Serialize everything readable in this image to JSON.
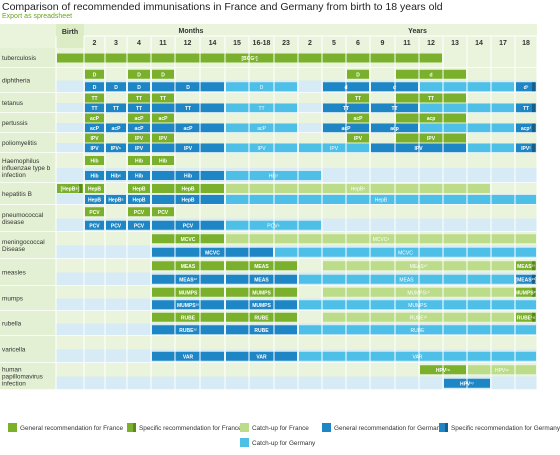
{
  "title": "Comparison of recommended immunisations in France and Germany from birth to 18 years old",
  "export_link": "Export as spreadsheet",
  "chart_data": {
    "type": "table",
    "header": {
      "birth": "Birth",
      "months": "Months",
      "years": "Years"
    },
    "columns": [
      "Birth",
      "2",
      "3",
      "4",
      "11",
      "12",
      "14",
      "15",
      "16-18",
      "23",
      "2",
      "5",
      "6",
      "9",
      "11",
      "12",
      "13",
      "14",
      "17",
      "18"
    ],
    "colors": {
      "general_fr": "#7ab02c",
      "specific_fr": "#7ab02c",
      "catchup_fr": "#bcdc8a",
      "general_de": "#1f86c5",
      "specific_de": "#1f86c5",
      "catchup_de": "#4ec0e8",
      "stripe_a": "#eaf4dc",
      "stripe_b": "#d6ebf6",
      "grid": "#ffffff"
    },
    "vaccines": [
      {
        "name": "tuberculosis",
        "single": true,
        "fr": [
          {
            "from": 0,
            "to": 15,
            "type": "general",
            "label": "[BCG¹]"
          }
        ],
        "de": []
      },
      {
        "name": "diphtheria",
        "fr": [
          {
            "from": 1,
            "to": 1,
            "type": "general",
            "label": "D"
          },
          {
            "from": 3,
            "to": 3,
            "type": "general",
            "label": "D"
          },
          {
            "from": 4,
            "to": 4,
            "type": "general",
            "label": "D"
          },
          {
            "from": 12,
            "to": 12,
            "type": "general",
            "label": "D"
          },
          {
            "from": 14,
            "to": 16,
            "type": "general",
            "label": "d"
          }
        ],
        "de": [
          {
            "from": 1,
            "to": 1,
            "type": "general",
            "label": "D"
          },
          {
            "from": 2,
            "to": 2,
            "type": "general",
            "label": "D"
          },
          {
            "from": 3,
            "to": 3,
            "type": "general",
            "label": "D"
          },
          {
            "from": 4,
            "to": 6,
            "type": "general",
            "label": "D"
          },
          {
            "from": 7,
            "to": 9,
            "type": "catchup",
            "label": "D"
          },
          {
            "from": 11,
            "to": 12,
            "type": "general",
            "label": "d"
          },
          {
            "from": 13,
            "to": 14,
            "type": "general",
            "label": "d"
          },
          {
            "from": 15,
            "to": 18,
            "type": "catchup",
            "label": ""
          },
          {
            "from": 19,
            "to": 19,
            "type": "specific",
            "label": "d³"
          }
        ]
      },
      {
        "name": "tetanus",
        "fr": [
          {
            "from": 1,
            "to": 1,
            "type": "general",
            "label": "TT"
          },
          {
            "from": 3,
            "to": 3,
            "type": "general",
            "label": "TT"
          },
          {
            "from": 4,
            "to": 4,
            "type": "general",
            "label": "TT"
          },
          {
            "from": 12,
            "to": 12,
            "type": "general",
            "label": "TT"
          },
          {
            "from": 14,
            "to": 16,
            "type": "general",
            "label": "TT"
          }
        ],
        "de": [
          {
            "from": 1,
            "to": 1,
            "type": "general",
            "label": "TT"
          },
          {
            "from": 2,
            "to": 2,
            "type": "general",
            "label": "TT"
          },
          {
            "from": 3,
            "to": 3,
            "type": "general",
            "label": "TT"
          },
          {
            "from": 4,
            "to": 6,
            "type": "general",
            "label": "TT"
          },
          {
            "from": 7,
            "to": 9,
            "type": "catchup",
            "label": "TT"
          },
          {
            "from": 11,
            "to": 12,
            "type": "general",
            "label": "TT"
          },
          {
            "from": 13,
            "to": 14,
            "type": "general",
            "label": "TT"
          },
          {
            "from": 15,
            "to": 18,
            "type": "catchup",
            "label": ""
          },
          {
            "from": 19,
            "to": 19,
            "type": "specific",
            "label": "TT"
          }
        ]
      },
      {
        "name": "pertussis",
        "fr": [
          {
            "from": 1,
            "to": 1,
            "type": "general",
            "label": "acP"
          },
          {
            "from": 3,
            "to": 3,
            "type": "general",
            "label": "acP"
          },
          {
            "from": 4,
            "to": 4,
            "type": "general",
            "label": "acP"
          },
          {
            "from": 12,
            "to": 12,
            "type": "general",
            "label": "acP"
          },
          {
            "from": 14,
            "to": 16,
            "type": "general",
            "label": "acp"
          }
        ],
        "de": [
          {
            "from": 1,
            "to": 1,
            "type": "general",
            "label": "acP"
          },
          {
            "from": 2,
            "to": 2,
            "type": "general",
            "label": "acP"
          },
          {
            "from": 3,
            "to": 3,
            "type": "general",
            "label": "acP"
          },
          {
            "from": 4,
            "to": 6,
            "type": "general",
            "label": "acP"
          },
          {
            "from": 7,
            "to": 9,
            "type": "catchup",
            "label": "acP"
          },
          {
            "from": 11,
            "to": 12,
            "type": "general",
            "label": "acP"
          },
          {
            "from": 13,
            "to": 14,
            "type": "general",
            "label": "acp"
          },
          {
            "from": 15,
            "to": 18,
            "type": "catchup",
            "label": ""
          },
          {
            "from": 19,
            "to": 19,
            "type": "specific",
            "label": "acp²"
          }
        ]
      },
      {
        "name": "poliomyelitis",
        "fr": [
          {
            "from": 1,
            "to": 1,
            "type": "general",
            "label": "IPV"
          },
          {
            "from": 3,
            "to": 3,
            "type": "general",
            "label": "IPV"
          },
          {
            "from": 4,
            "to": 4,
            "type": "general",
            "label": "IPV"
          },
          {
            "from": 12,
            "to": 12,
            "type": "general",
            "label": "IPV"
          },
          {
            "from": 14,
            "to": 16,
            "type": "general",
            "label": "IPV"
          }
        ],
        "de": [
          {
            "from": 1,
            "to": 1,
            "type": "general",
            "label": "IPV"
          },
          {
            "from": 2,
            "to": 2,
            "type": "general",
            "label": "IPV⁵"
          },
          {
            "from": 3,
            "to": 3,
            "type": "general",
            "label": "IPV"
          },
          {
            "from": 4,
            "to": 6,
            "type": "general",
            "label": "IPV"
          },
          {
            "from": 7,
            "to": 9,
            "type": "catchup",
            "label": "IPV"
          },
          {
            "from": 10,
            "to": 12,
            "type": "catchup",
            "label": "IPV"
          },
          {
            "from": 13,
            "to": 16,
            "type": "general",
            "label": "IPV"
          },
          {
            "from": 17,
            "to": 18,
            "type": "catchup",
            "label": ""
          },
          {
            "from": 19,
            "to": 19,
            "type": "specific",
            "label": "IPV²"
          }
        ]
      },
      {
        "name": "Haemophilus influenzae type b infection",
        "fr": [
          {
            "from": 1,
            "to": 1,
            "type": "general",
            "label": "Hib"
          },
          {
            "from": 3,
            "to": 3,
            "type": "general",
            "label": "Hib"
          },
          {
            "from": 4,
            "to": 4,
            "type": "general",
            "label": "Hib"
          }
        ],
        "de": [
          {
            "from": 1,
            "to": 1,
            "type": "general",
            "label": "Hib"
          },
          {
            "from": 2,
            "to": 2,
            "type": "general",
            "label": "Hib⁶"
          },
          {
            "from": 3,
            "to": 3,
            "type": "general",
            "label": "Hib"
          },
          {
            "from": 4,
            "to": 6,
            "type": "general",
            "label": "Hib"
          },
          {
            "from": 7,
            "to": 10,
            "type": "catchup",
            "label": "Hib⁷"
          }
        ]
      },
      {
        "name": "hepatitis B",
        "fr": [
          {
            "from": 0,
            "to": 0,
            "type": "specific",
            "label": "[HepB⁸]"
          },
          {
            "from": 1,
            "to": 1,
            "type": "general",
            "label": "HepB"
          },
          {
            "from": 3,
            "to": 3,
            "type": "general",
            "label": "HepB"
          },
          {
            "from": 4,
            "to": 6,
            "type": "general",
            "label": "HepB"
          },
          {
            "from": 7,
            "to": 17,
            "type": "catchup",
            "label": "HepB⁹"
          }
        ],
        "de": [
          {
            "from": 1,
            "to": 1,
            "type": "general",
            "label": "HepB"
          },
          {
            "from": 2,
            "to": 2,
            "type": "general",
            "label": "HepB⁶"
          },
          {
            "from": 3,
            "to": 3,
            "type": "general",
            "label": "HepB"
          },
          {
            "from": 4,
            "to": 6,
            "type": "general",
            "label": "HepB"
          },
          {
            "from": 7,
            "to": 19,
            "type": "catchup",
            "label": "HepB"
          }
        ]
      },
      {
        "name": "pneumococcal disease",
        "fr": [
          {
            "from": 1,
            "to": 1,
            "type": "general",
            "label": "PCV"
          },
          {
            "from": 3,
            "to": 3,
            "type": "general",
            "label": "PCV"
          },
          {
            "from": 4,
            "to": 4,
            "type": "general",
            "label": "PCV"
          }
        ],
        "de": [
          {
            "from": 1,
            "to": 1,
            "type": "general",
            "label": "PCV"
          },
          {
            "from": 2,
            "to": 2,
            "type": "general",
            "label": "PCV"
          },
          {
            "from": 3,
            "to": 3,
            "type": "general",
            "label": "PCV"
          },
          {
            "from": 4,
            "to": 6,
            "type": "general",
            "label": "PCV"
          },
          {
            "from": 7,
            "to": 10,
            "type": "catchup",
            "label": "PCV⁹"
          }
        ]
      },
      {
        "name": "meningococcal Disease",
        "fr": [
          {
            "from": 4,
            "to": 6,
            "type": "general",
            "label": "MCVC"
          },
          {
            "from": 7,
            "to": 19,
            "type": "catchup",
            "label": "MCVC⁸"
          }
        ],
        "de": [
          {
            "from": 4,
            "to": 8,
            "type": "general",
            "label": "MCVC"
          },
          {
            "from": 9,
            "to": 19,
            "type": "catchup",
            "label": "MCVC"
          }
        ]
      },
      {
        "name": "measles",
        "fr": [
          {
            "from": 4,
            "to": 6,
            "type": "general",
            "label": "MEAS"
          },
          {
            "from": 7,
            "to": 9,
            "type": "general",
            "label": "MEAS"
          },
          {
            "from": 11,
            "to": 18,
            "type": "catchup",
            "label": "MEAS¹⁰"
          },
          {
            "from": 19,
            "to": 19,
            "type": "specific",
            "label": "MEAS¹¹"
          }
        ],
        "de": [
          {
            "from": 4,
            "to": 6,
            "type": "general",
            "label": "MEAS¹²"
          },
          {
            "from": 7,
            "to": 9,
            "type": "general",
            "label": "MEAS"
          },
          {
            "from": 10,
            "to": 18,
            "type": "catchup",
            "label": "MEAS"
          },
          {
            "from": 19,
            "to": 19,
            "type": "specific",
            "label": "[MEAS¹³]"
          }
        ]
      },
      {
        "name": "mumps",
        "fr": [
          {
            "from": 4,
            "to": 6,
            "type": "general",
            "label": "MUMPS"
          },
          {
            "from": 7,
            "to": 9,
            "type": "general",
            "label": "MUMPS"
          },
          {
            "from": 11,
            "to": 18,
            "type": "catchup",
            "label": "MUMPS¹⁰"
          },
          {
            "from": 19,
            "to": 19,
            "type": "specific",
            "label": "MUMPS¹¹"
          }
        ],
        "de": [
          {
            "from": 4,
            "to": 6,
            "type": "general",
            "label": "MUMPS¹²"
          },
          {
            "from": 7,
            "to": 9,
            "type": "general",
            "label": "MUMPS"
          },
          {
            "from": 10,
            "to": 19,
            "type": "catchup",
            "label": "MUMPS"
          }
        ]
      },
      {
        "name": "rubella",
        "fr": [
          {
            "from": 4,
            "to": 6,
            "type": "general",
            "label": "RUBE"
          },
          {
            "from": 7,
            "to": 9,
            "type": "general",
            "label": "RUBE"
          },
          {
            "from": 11,
            "to": 18,
            "type": "catchup",
            "label": "RUBE¹⁰"
          },
          {
            "from": 19,
            "to": 19,
            "type": "specific",
            "label": "RUBE¹⁴"
          }
        ],
        "de": [
          {
            "from": 4,
            "to": 6,
            "type": "general",
            "label": "RUBE¹²"
          },
          {
            "from": 7,
            "to": 9,
            "type": "general",
            "label": "RUBE"
          },
          {
            "from": 10,
            "to": 19,
            "type": "catchup",
            "label": "RUBE"
          }
        ]
      },
      {
        "name": "varicella",
        "fr": [],
        "de": [
          {
            "from": 4,
            "to": 6,
            "type": "general",
            "label": "VAR"
          },
          {
            "from": 7,
            "to": 9,
            "type": "general",
            "label": "VAR"
          },
          {
            "from": 10,
            "to": 19,
            "type": "catchup",
            "label": "VAR"
          }
        ]
      },
      {
        "name": "human papillomavirus infection",
        "fr": [
          {
            "from": 15,
            "to": 16,
            "type": "general",
            "label": "HPV¹⁶"
          },
          {
            "from": 17,
            "to": 19,
            "type": "catchup",
            "label": "HPV¹⁶"
          }
        ],
        "de": [
          {
            "from": 16,
            "to": 17,
            "type": "general",
            "label": "HPV¹⁷"
          }
        ]
      }
    ],
    "legend": [
      {
        "key": "general_fr",
        "label": "General recommendation for France"
      },
      {
        "key": "specific_fr",
        "label": "Specific recommendation for France"
      },
      {
        "key": "catchup_fr",
        "label": "Catch-up for France"
      },
      {
        "key": "general_de",
        "label": "General recommendation for Germany"
      },
      {
        "key": "specific_de",
        "label": "Specific recommendation for Germany"
      },
      {
        "key": "catchup_de",
        "label": "Catch-up for Germany"
      }
    ]
  }
}
